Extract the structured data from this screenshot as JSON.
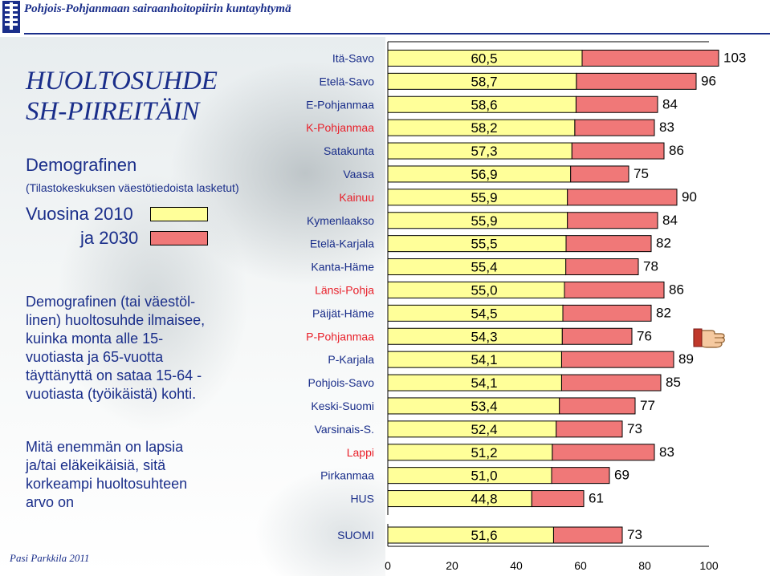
{
  "header": {
    "title": "Pohjois-Pohjanmaan sairaanhoitopiirin kuntayhtymä"
  },
  "slide": {
    "title_line1": "HUOLTOSUHDE",
    "title_line2": "SH-PIIREITÄIN",
    "subtitle": "Demografinen",
    "source": "(Tilastokeskuksen väestötiedoista lasketut)",
    "legend_2010": "Vuosina 2010",
    "legend_2030": "ja 2030",
    "description": "Demografinen (tai väestöl-\nlinen) huoltosuhde ilmaisee,\nkuinka monta alle 15-\nvuotiasta ja 65-vuotta\ntäyttänyttä on sataa 15-64 -\nvuotiasta (työikäistä) kohti.",
    "description2": "Mitä enemmän on lapsia\nja/tai eläkeikäisiä, sitä\nkorkeampi huoltosuhteen\narvo on",
    "author": "Pasi Parkkila 2011"
  },
  "colors": {
    "text_blue": "#1a2e8a",
    "bar_2010": "#ffff99",
    "bar_2030": "#f07878",
    "label_red": "#e8202a",
    "label_dark": "#1a2e8a"
  },
  "chart_data": {
    "type": "bar",
    "orientation": "horizontal",
    "categories": [
      "Itä-Savo",
      "Etelä-Savo",
      "E-Pohjanmaa",
      "K-Pohjanmaa",
      "Satakunta",
      "Vaasa",
      "Kainuu",
      "Kymenlaakso",
      "Etelä-Karjala",
      "Kanta-Häme",
      "Länsi-Pohja",
      "Päijät-Häme",
      "P-Pohjanmaa",
      "P-Karjala",
      "Pohjois-Savo",
      "Keski-Suomi",
      "Varsinais-S.",
      "Lappi",
      "Pirkanmaa",
      "HUS",
      "SUOMI"
    ],
    "category_colors": [
      "dark",
      "dark",
      "dark",
      "red",
      "dark",
      "dark",
      "red",
      "dark",
      "dark",
      "dark",
      "red",
      "dark",
      "red",
      "dark",
      "dark",
      "dark",
      "dark",
      "red",
      "dark",
      "dark",
      "dark"
    ],
    "series": [
      {
        "values": [
          60.5,
          58.7,
          58.6,
          58.2,
          57.3,
          56.9,
          55.9,
          55.9,
          55.5,
          55.4,
          55.0,
          54.5,
          54.3,
          54.1,
          54.1,
          53.4,
          52.4,
          51.2,
          51.0,
          44.8,
          51.6
        ],
        "labels": [
          "60,5",
          "58,7",
          "58,6",
          "58,2",
          "57,3",
          "56,9",
          "55,9",
          "55,9",
          "55,5",
          "55,4",
          "55,0",
          "54,5",
          "54,3",
          "54,1",
          "54,1",
          "53,4",
          "52,4",
          "51,2",
          "51,0",
          "44,8",
          "51,6"
        ]
      },
      {
        "values": [
          103,
          96,
          84,
          83,
          86,
          75,
          90,
          84,
          82,
          78,
          86,
          82,
          76,
          89,
          85,
          77,
          73,
          83,
          69,
          61,
          73
        ],
        "labels": [
          "103",
          "96",
          "84",
          "83",
          "86",
          "75",
          "90",
          "84",
          "82",
          "78",
          "86",
          "82",
          "76",
          "89",
          "85",
          "77",
          "73",
          "83",
          "69",
          "61",
          "73"
        ]
      }
    ],
    "x_ticks": [
      "0",
      "20",
      "40",
      "60",
      "80",
      "100"
    ],
    "xlim": [
      0,
      100
    ]
  }
}
